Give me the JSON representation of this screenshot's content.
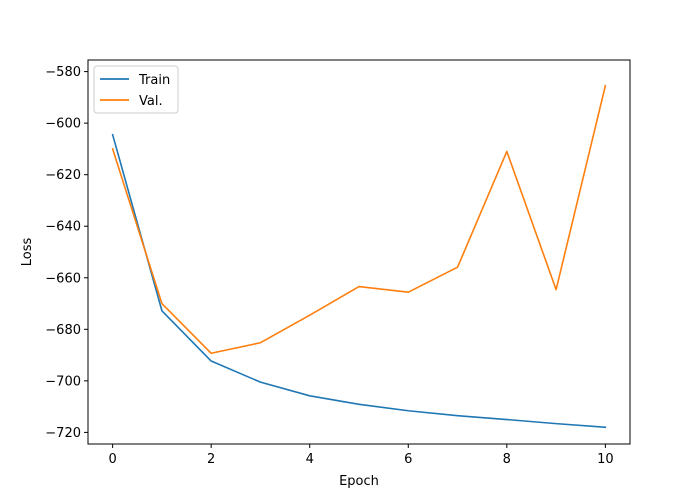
{
  "chart_data": {
    "type": "line",
    "title": "",
    "xlabel": "Epoch",
    "ylabel": "Loss",
    "xlim": [
      -0.5,
      10.5
    ],
    "ylim": [
      -724.5,
      -575.5
    ],
    "xticks": [
      0,
      2,
      4,
      6,
      8,
      10
    ],
    "yticks": [
      -720,
      -700,
      -680,
      -660,
      -640,
      -620,
      -600,
      -580
    ],
    "grid": false,
    "legend_position": "top-left",
    "x": [
      0,
      1,
      2,
      3,
      4,
      5,
      6,
      7,
      8,
      9,
      10
    ],
    "series": [
      {
        "name": "Train",
        "color": "#1f77b4",
        "values": [
          -604.5,
          -672.8,
          -692.3,
          -700.5,
          -705.8,
          -709.1,
          -711.6,
          -713.5,
          -715.0,
          -716.6,
          -718.0
        ]
      },
      {
        "name": "Val.",
        "color": "#ff7f0e",
        "values": [
          -610.0,
          -670.0,
          -689.3,
          -685.2,
          -674.5,
          -663.4,
          -665.6,
          -655.9,
          -611.0,
          -664.6,
          -585.5
        ]
      }
    ]
  }
}
